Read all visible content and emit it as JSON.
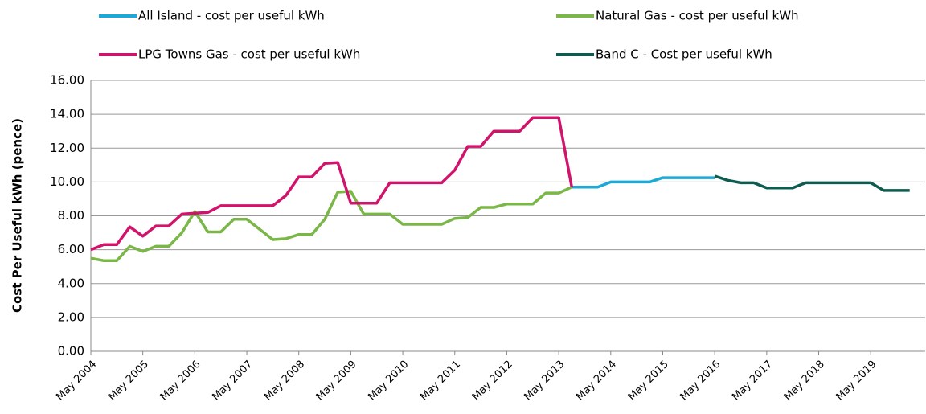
{
  "chart_data": {
    "type": "line",
    "y_axis_label": "Cost Per Useful kWh (pence)",
    "categories": [
      "May 2004",
      null,
      null,
      null,
      "May 2005",
      null,
      null,
      null,
      "May 2006",
      null,
      null,
      null,
      "May 2007",
      null,
      null,
      null,
      "May 2008",
      null,
      null,
      null,
      "May 2009",
      null,
      null,
      null,
      "May 2010",
      null,
      null,
      null,
      "May 2011",
      null,
      null,
      null,
      "May 2012",
      null,
      null,
      null,
      "May 2013",
      null,
      null,
      null,
      "May 2014",
      null,
      null,
      null,
      "May 2015",
      null,
      null,
      null,
      "May 2016",
      null,
      null,
      null,
      "May 2017",
      null,
      null,
      null,
      "May 2018",
      null,
      null,
      null,
      "May 2019",
      null,
      null,
      null
    ],
    "series": [
      {
        "name": "All Island - cost per useful kWh",
        "color": "#1ba9d8",
        "values": [
          null,
          null,
          null,
          null,
          null,
          null,
          null,
          null,
          null,
          null,
          null,
          null,
          null,
          null,
          null,
          null,
          null,
          null,
          null,
          null,
          null,
          null,
          null,
          null,
          null,
          null,
          null,
          null,
          null,
          null,
          null,
          null,
          null,
          null,
          null,
          null,
          null,
          9.7,
          9.7,
          9.7,
          10.0,
          10.0,
          10.0,
          10.0,
          10.25,
          10.25,
          10.25,
          10.25,
          10.25,
          null,
          null,
          null,
          null,
          null,
          null,
          null,
          null,
          null,
          null,
          null,
          null,
          null,
          null,
          null
        ]
      },
      {
        "name": "Natural Gas - cost per useful kWh",
        "color": "#7ab648",
        "values": [
          5.5,
          5.35,
          5.35,
          6.2,
          5.9,
          6.2,
          6.2,
          7.0,
          8.25,
          7.05,
          7.05,
          7.8,
          7.8,
          7.2,
          6.6,
          6.65,
          6.9,
          6.9,
          7.8,
          9.4,
          9.45,
          8.1,
          8.1,
          8.1,
          7.5,
          7.5,
          7.5,
          7.5,
          7.85,
          7.9,
          8.5,
          8.5,
          8.7,
          8.7,
          8.7,
          9.35,
          9.35,
          9.7,
          null,
          null,
          null,
          null,
          null,
          null,
          null,
          null,
          null,
          null,
          null,
          null,
          null,
          null,
          null,
          null,
          null,
          null,
          null,
          null,
          null,
          null,
          null,
          null,
          null,
          null
        ]
      },
      {
        "name": "LPG Towns Gas - cost per useful kWh",
        "color": "#d0146b",
        "values": [
          6.0,
          6.3,
          6.3,
          7.35,
          6.8,
          7.4,
          7.4,
          8.1,
          8.15,
          8.2,
          8.6,
          8.6,
          8.6,
          8.6,
          8.6,
          9.2,
          10.3,
          10.3,
          11.1,
          11.15,
          8.75,
          8.75,
          8.75,
          9.95,
          9.95,
          9.95,
          9.95,
          9.95,
          10.7,
          12.1,
          12.1,
          13.0,
          13.0,
          13.0,
          13.8,
          13.8,
          13.8,
          9.7,
          null,
          null,
          null,
          null,
          null,
          null,
          null,
          null,
          null,
          null,
          null,
          null,
          null,
          null,
          null,
          null,
          null,
          null,
          null,
          null,
          null,
          null,
          null,
          null,
          null,
          null
        ]
      },
      {
        "name": "Band C - Cost per useful kWh",
        "color": "#0e5c4f",
        "values": [
          null,
          null,
          null,
          null,
          null,
          null,
          null,
          null,
          null,
          null,
          null,
          null,
          null,
          null,
          null,
          null,
          null,
          null,
          null,
          null,
          null,
          null,
          null,
          null,
          null,
          null,
          null,
          null,
          null,
          null,
          null,
          null,
          null,
          null,
          null,
          null,
          null,
          null,
          null,
          null,
          null,
          null,
          null,
          null,
          null,
          null,
          null,
          null,
          10.35,
          10.1,
          9.95,
          9.95,
          9.65,
          9.65,
          9.65,
          9.95,
          9.95,
          9.95,
          9.95,
          9.95,
          9.95,
          9.5,
          9.5,
          9.5
        ]
      }
    ],
    "ylim": [
      0,
      16
    ],
    "yticks": [
      {
        "value": 0,
        "label": "0.00"
      },
      {
        "value": 2,
        "label": "2.00"
      },
      {
        "value": 4,
        "label": "4.00"
      },
      {
        "value": 6,
        "label": "6.00"
      },
      {
        "value": 8,
        "label": "8.00"
      },
      {
        "value": 10,
        "label": "10.00"
      },
      {
        "value": 12,
        "label": "12.00"
      },
      {
        "value": 14,
        "label": "14.00"
      },
      {
        "value": 16,
        "label": "16.00"
      }
    ],
    "grid": true
  }
}
